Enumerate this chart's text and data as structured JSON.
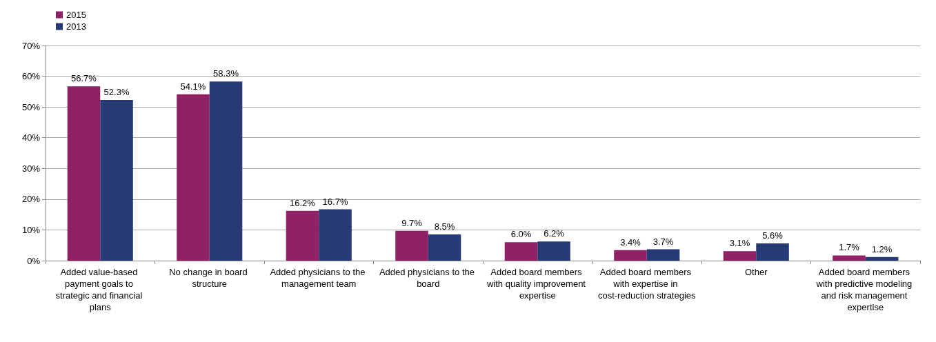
{
  "chart_data": {
    "type": "bar",
    "categories": [
      "Added value-based payment goals to strategic and financial plans",
      "No change in board structure",
      "Added physicians to the management team",
      "Added physicians to the board",
      "Added board members with quality improvement expertise",
      "Added board members with expertise in cost-reduction strategies",
      "Other",
      "Added board members with predictive modeling and risk management expertise"
    ],
    "series": [
      {
        "name": "2015",
        "color": "#8e2265",
        "values": [
          56.7,
          54.1,
          16.2,
          9.7,
          6.0,
          3.4,
          3.1,
          1.7
        ],
        "value_labels": [
          "56.7%",
          "54.1%",
          "16.2%",
          "9.7%",
          "6.0%",
          "3.4%",
          "3.1%",
          "1.7%"
        ]
      },
      {
        "name": "2013",
        "color": "#263a75",
        "values": [
          52.3,
          58.3,
          16.7,
          8.5,
          6.2,
          3.7,
          5.6,
          1.2
        ],
        "value_labels": [
          "52.3%",
          "58.3%",
          "16.7%",
          "8.5%",
          "6.2%",
          "3.7%",
          "5.6%",
          "1.2%"
        ]
      }
    ],
    "ylim": [
      0,
      70
    ],
    "yticks": [
      {
        "value": 0,
        "label": "0%"
      },
      {
        "value": 10,
        "label": "10%"
      },
      {
        "value": 20,
        "label": "20%"
      },
      {
        "value": 30,
        "label": "30%"
      },
      {
        "value": 40,
        "label": "40%"
      },
      {
        "value": 50,
        "label": "50%"
      },
      {
        "value": 60,
        "label": "60%"
      },
      {
        "value": 70,
        "label": "70%"
      }
    ],
    "grid": "y",
    "legend": "top left"
  }
}
